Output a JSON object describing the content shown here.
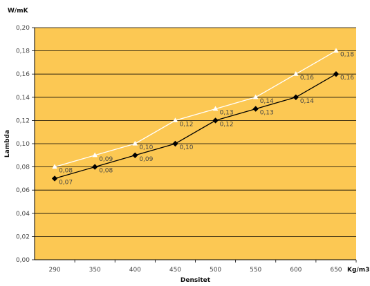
{
  "chart_data": {
    "type": "line",
    "x": [
      290,
      350,
      400,
      450,
      500,
      550,
      600,
      650
    ],
    "series": [
      {
        "values": [
          0.08,
          0.09,
          0.1,
          0.12,
          0.13,
          0.14,
          0.16,
          0.18
        ],
        "labels": [
          "0,08",
          "0,09",
          "0,10",
          "0,12",
          "0,13",
          "0,14",
          "0,16",
          "0,18"
        ],
        "color": "#ffffff",
        "marker": "triangle"
      },
      {
        "values": [
          0.07,
          0.08,
          0.09,
          0.1,
          0.12,
          0.13,
          0.14,
          0.16
        ],
        "labels": [
          "0,07",
          "0,08",
          "0,09",
          "0,10",
          "0,12",
          "0,13",
          "0,14",
          "0,16"
        ],
        "color": "#000000",
        "marker": "diamond"
      }
    ],
    "y_ticks": [
      "0,00",
      "0,02",
      "0,04",
      "0,06",
      "0,08",
      "0,10",
      "0,12",
      "0,14",
      "0,16",
      "0,18",
      "0,20"
    ],
    "ylim": [
      0,
      0.2
    ],
    "ylabel": "Lambda",
    "y_unit": "W/mK",
    "xlabel": "Densitet",
    "x_unit": "Kg/m3",
    "grid": true,
    "plot_background": "#fcc853"
  }
}
